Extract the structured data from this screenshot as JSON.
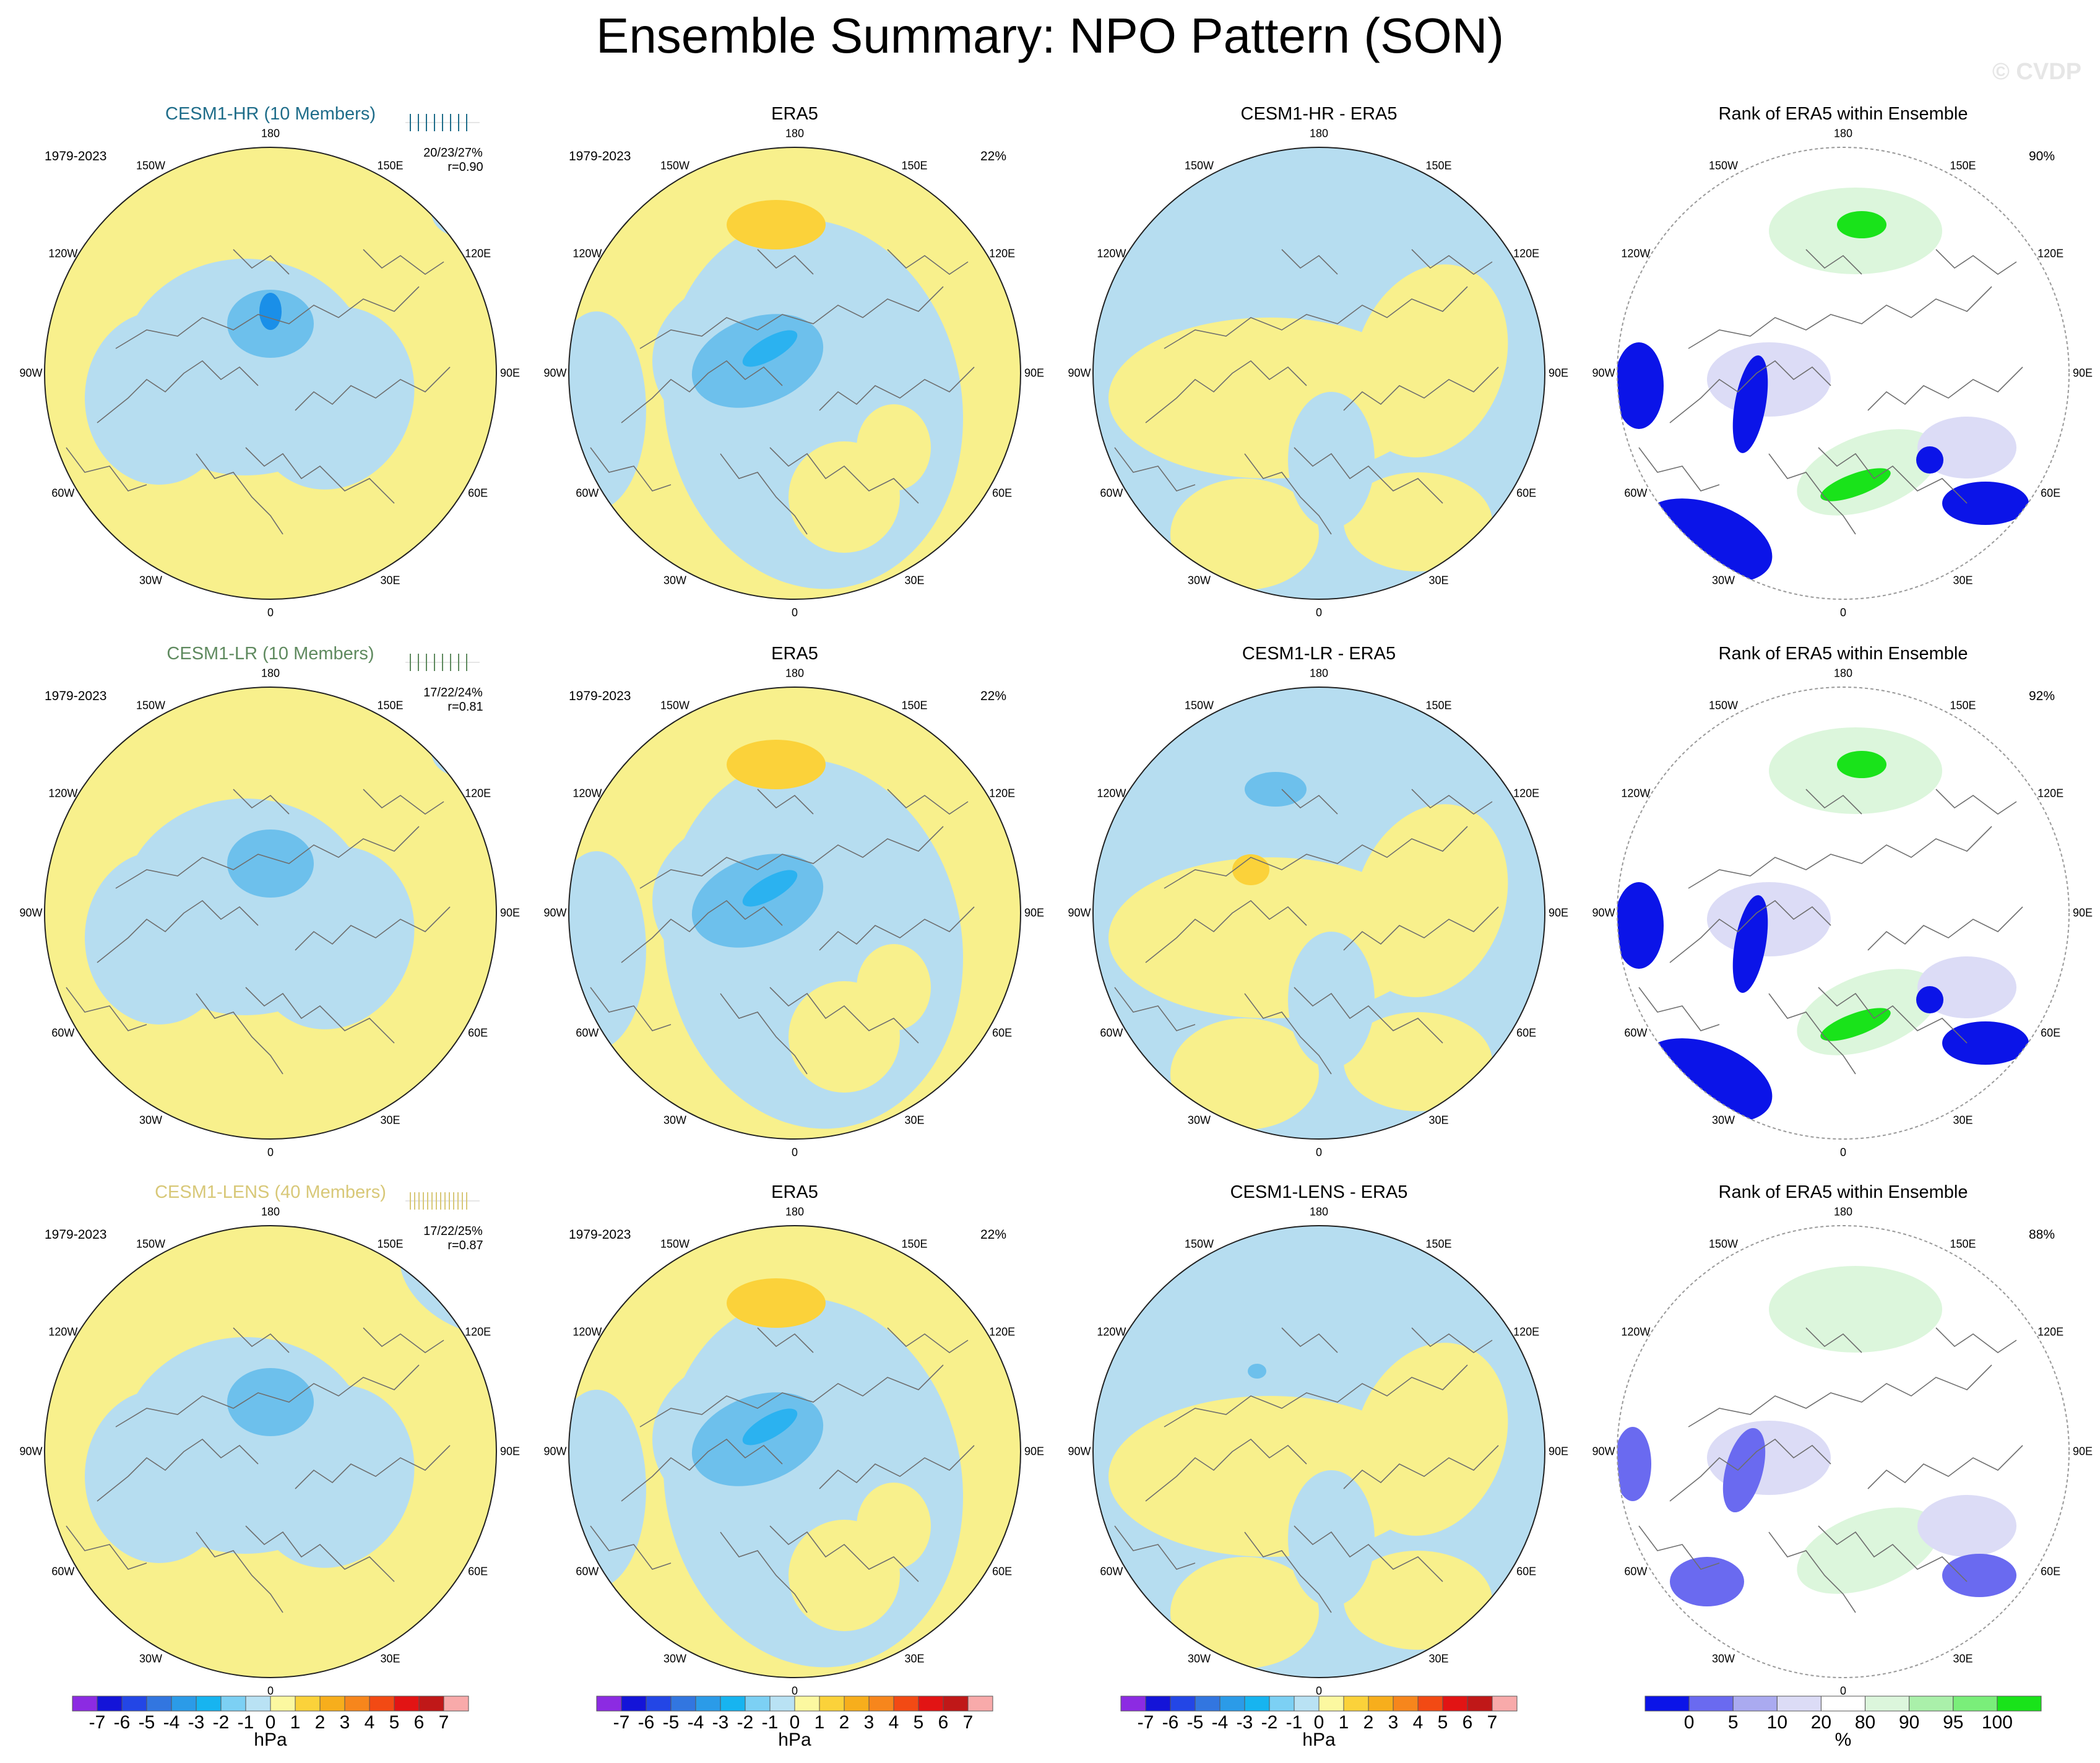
{
  "title": "Ensemble Summary: NPO Pattern (SON)",
  "watermark": "© CVDP",
  "colors": {
    "pos1": "#f8f08c",
    "pos3": "#fbd23a",
    "neg1": "#b6ddf0",
    "neg3": "#6dc0ec",
    "neg4": "#2bb2f0",
    "neg5": "#1a8fe8",
    "rank_blue": "#0b14e8",
    "rank_lav": "#dcdcf6",
    "rank_green": "#19e31a",
    "rank_pale_green": "#dcf6dc",
    "coast": "#6e6e6e"
  },
  "rows": [
    {
      "panels": [
        {
          "title": "CESM1-HR (10 Members)",
          "title_color": "#1f6d8a",
          "period": "1979-2023",
          "stats_line1": "20/23/27%",
          "stats_line2": "r=0.90",
          "kind": "model"
        },
        {
          "title": "ERA5",
          "period": "1979-2023",
          "pct": "22%",
          "kind": "obs"
        },
        {
          "title": "CESM1-HR - ERA5",
          "kind": "diff"
        },
        {
          "title": "Rank of ERA5 within Ensemble",
          "pct": "90%",
          "kind": "rank"
        }
      ]
    },
    {
      "panels": [
        {
          "title": "CESM1-LR (10 Members)",
          "title_color": "#5f8a5f",
          "period": "1979-2023",
          "stats_line1": "17/22/24%",
          "stats_line2": "r=0.81",
          "kind": "model"
        },
        {
          "title": "ERA5",
          "period": "1979-2023",
          "pct": "22%",
          "kind": "obs"
        },
        {
          "title": "CESM1-LR - ERA5",
          "kind": "diff"
        },
        {
          "title": "Rank of ERA5 within Ensemble",
          "pct": "92%",
          "kind": "rank"
        }
      ]
    },
    {
      "panels": [
        {
          "title": "CESM1-LENS (40 Members)",
          "title_color": "#d8c878",
          "period": "1979-2023",
          "stats_line1": "17/22/25%",
          "stats_line2": "r=0.87",
          "kind": "model"
        },
        {
          "title": "ERA5",
          "period": "1979-2023",
          "pct": "22%",
          "kind": "obs"
        },
        {
          "title": "CESM1-LENS - ERA5",
          "kind": "diff"
        },
        {
          "title": "Rank of ERA5 within Ensemble",
          "pct": "88%",
          "kind": "rank"
        }
      ]
    }
  ],
  "longitude_labels": [
    "180",
    "150E",
    "120E",
    "90E",
    "60E",
    "30E",
    "0",
    "30W",
    "60W",
    "90W",
    "120W",
    "150W"
  ],
  "colorbar_hpa": {
    "labels": [
      "-7",
      "-6",
      "-5",
      "-4",
      "-3",
      "-2",
      "-1",
      "0",
      "1",
      "2",
      "3",
      "4",
      "5",
      "6",
      "7"
    ],
    "colors": [
      "#8c2be2",
      "#1414d8",
      "#2346e6",
      "#3276e0",
      "#2b9be8",
      "#17b4f0",
      "#7cd0f4",
      "#b9e2f4",
      "#fcf8a0",
      "#fbd23a",
      "#f7ae1c",
      "#f7861c",
      "#f24a14",
      "#e21414",
      "#c01818",
      "#f8aaaa"
    ],
    "units": "hPa"
  },
  "colorbar_rank": {
    "labels": [
      "0",
      "5",
      "10",
      "20",
      "80",
      "90",
      "95",
      "100"
    ],
    "colors": [
      "#0b14e8",
      "#6a6af0",
      "#aaaaf0",
      "#dcdcf6",
      "#ffffff",
      "#dcf6dc",
      "#aaf0aa",
      "#7aee7a",
      "#19e31a"
    ],
    "units": "%"
  },
  "chart_data": {
    "type": "heatmap",
    "title": "Ensemble Summary: NPO Pattern (SON)",
    "projection": "North polar stereographic",
    "variable": "sea level pressure pattern (NPO)",
    "season": "SON",
    "period": "1979-2023",
    "units": "hPa",
    "contour_levels_hpa": [
      -7,
      -6,
      -5,
      -4,
      -3,
      -2,
      -1,
      0,
      1,
      2,
      3,
      4,
      5,
      6,
      7
    ],
    "rank_levels_pct": [
      0,
      5,
      10,
      20,
      80,
      90,
      95,
      100
    ],
    "panels": [
      {
        "row": 1,
        "model": "CESM1-HR",
        "members": 10,
        "pct_variance_min_mean_max": [
          20,
          23,
          27
        ],
        "pattern_correlation": 0.9,
        "obs_pct_variance": 22,
        "rank_pct_within": 90
      },
      {
        "row": 2,
        "model": "CESM1-LR",
        "members": 10,
        "pct_variance_min_mean_max": [
          17,
          22,
          24
        ],
        "pattern_correlation": 0.81,
        "obs_pct_variance": 22,
        "rank_pct_within": 92
      },
      {
        "row": 3,
        "model": "CESM1-LENS",
        "members": 40,
        "pct_variance_min_mean_max": [
          17,
          22,
          25
        ],
        "pattern_correlation": 0.87,
        "obs_pct_variance": 22,
        "rank_pct_within": 88
      }
    ]
  }
}
